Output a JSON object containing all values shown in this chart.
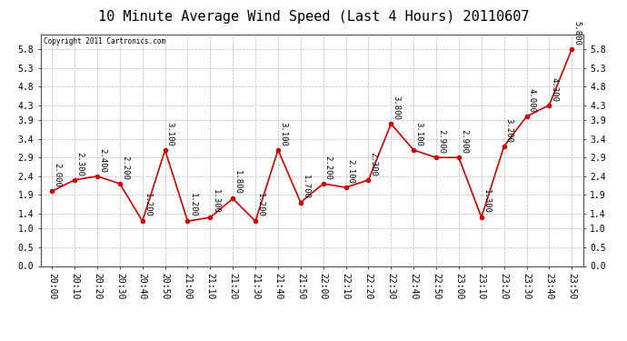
{
  "title": "10 Minute Average Wind Speed (Last 4 Hours) 20110607",
  "copyright": "Copyright 2011 Cartronics.com",
  "x_labels": [
    "20:00",
    "20:10",
    "20:20",
    "20:30",
    "20:40",
    "20:50",
    "21:00",
    "21:10",
    "21:20",
    "21:30",
    "21:40",
    "21:50",
    "22:00",
    "22:10",
    "22:20",
    "22:30",
    "22:40",
    "22:50",
    "23:00",
    "23:10",
    "23:20",
    "23:30",
    "23:40",
    "23:50"
  ],
  "y_values": [
    2.0,
    2.3,
    2.4,
    2.2,
    1.2,
    3.1,
    1.2,
    1.3,
    1.8,
    1.2,
    3.1,
    1.7,
    2.2,
    2.1,
    2.3,
    3.8,
    3.1,
    2.9,
    2.9,
    1.3,
    3.2,
    4.0,
    4.3,
    5.8
  ],
  "point_labels": [
    "2.000",
    "2.300",
    "2.400",
    "2.200",
    "1.200",
    "3.100",
    "1.200",
    "1.300",
    "1.800",
    "1.200",
    "3.100",
    "1.700",
    "2.200",
    "2.100",
    "2.300",
    "3.800",
    "3.100",
    "2.900",
    "2.900",
    "1.300",
    "3.200",
    "4.000",
    "4.300",
    "5.800"
  ],
  "line_color": "#cc0000",
  "marker_color": "#cc0000",
  "bg_color": "#ffffff",
  "grid_color": "#bbbbbb",
  "ylim": [
    0.0,
    6.2
  ],
  "ytick_vals": [
    0.0,
    0.5,
    1.0,
    1.4,
    1.9,
    2.4,
    2.9,
    3.4,
    3.9,
    4.3,
    4.8,
    5.3,
    5.8
  ],
  "ytick_labels": [
    "0.0",
    "0.5",
    "1.0",
    "1.4",
    "1.9",
    "2.4",
    "2.9",
    "3.4",
    "3.9",
    "4.3",
    "4.8",
    "5.3",
    "5.8"
  ],
  "title_fontsize": 11,
  "tick_fontsize": 7,
  "label_fontsize": 6.5
}
